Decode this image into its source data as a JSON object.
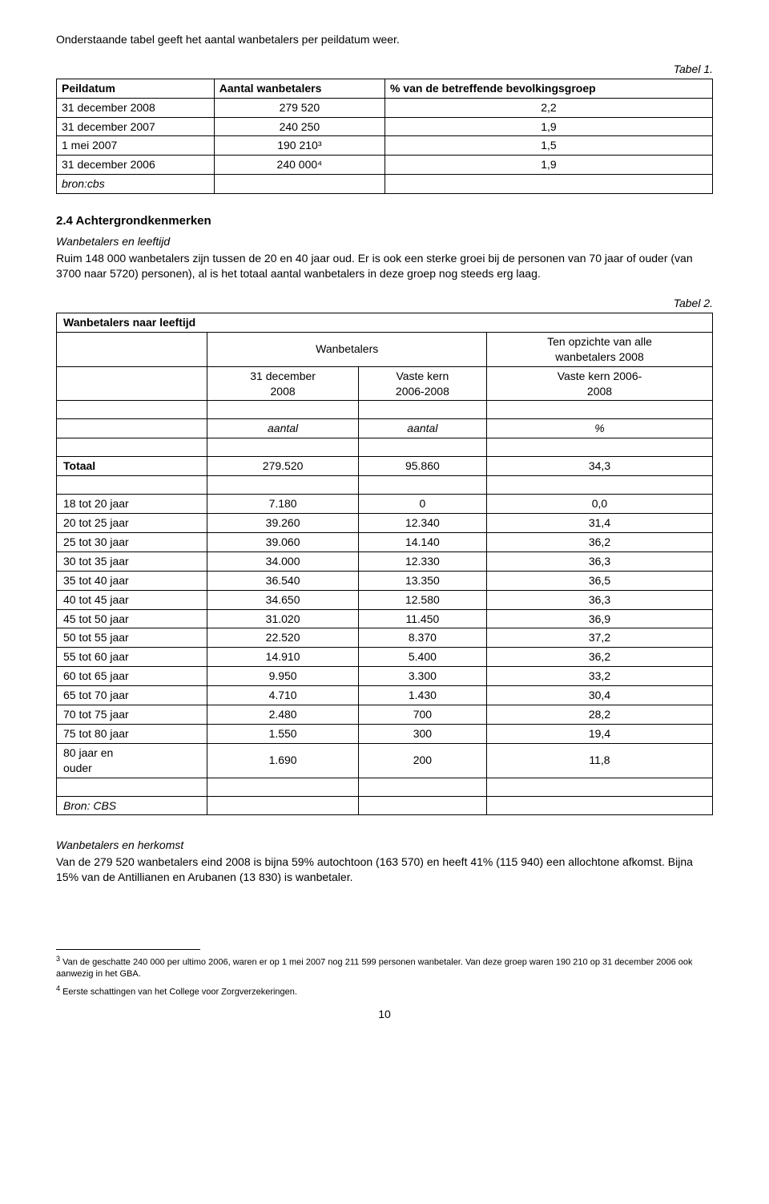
{
  "intro": "Onderstaande tabel geeft het aantal wanbetalers per peildatum weer.",
  "table1": {
    "label": "Tabel 1.",
    "headers": [
      "Peildatum",
      "Aantal wanbetalers",
      "% van de betreffende bevolkingsgroep"
    ],
    "rows": [
      {
        "c0": "31 december 2008",
        "c1": "279 520",
        "c2": "2,2"
      },
      {
        "c0": "31 december 2007",
        "c1": "240 250",
        "c2": "1,9"
      },
      {
        "c0": "1 mei 2007",
        "c1": "190 210³",
        "c2": "1,5"
      },
      {
        "c0": "31 december 2006",
        "c1": "240 000⁴",
        "c2": "1,9"
      }
    ],
    "source": "bron:cbs"
  },
  "section24": {
    "heading": "2.4 Achtergrondkenmerken",
    "sub1_title": "Wanbetalers en leeftijd",
    "sub1_text": "Ruim 148 000 wanbetalers zijn tussen de 20 en 40 jaar oud. Er is ook een sterke groei bij de personen van 70 jaar of ouder (van 3700 naar 5720) personen), al is het totaal aantal wanbetalers in deze groep nog steeds erg laag."
  },
  "table2": {
    "label": "Tabel 2.",
    "title": "Wanbetalers naar leeftijd",
    "group_left": "Wanbetalers",
    "group_right_l1": "Ten opzichte van alle",
    "group_right_l2": "wanbetalers 2008",
    "col1_l1": "31 december",
    "col1_l2": "2008",
    "col2_l1": "Vaste kern",
    "col2_l2": "2006-2008",
    "col3_l1": "Vaste kern 2006-",
    "col3_l2": "2008",
    "units": {
      "c1": "aantal",
      "c2": "aantal",
      "c3": "%"
    },
    "total": {
      "label": "Totaal",
      "c1": "279.520",
      "c2": "95.860",
      "c3": "34,3"
    },
    "rows": [
      {
        "label": "18 tot 20 jaar",
        "c1": "7.180",
        "c2": "0",
        "c3": "0,0"
      },
      {
        "label": "20 tot 25 jaar",
        "c1": "39.260",
        "c2": "12.340",
        "c3": "31,4"
      },
      {
        "label": "25 tot 30 jaar",
        "c1": "39.060",
        "c2": "14.140",
        "c3": "36,2"
      },
      {
        "label": "30 tot 35 jaar",
        "c1": "34.000",
        "c2": "12.330",
        "c3": "36,3"
      },
      {
        "label": "35 tot 40 jaar",
        "c1": "36.540",
        "c2": "13.350",
        "c3": "36,5"
      },
      {
        "label": "40 tot 45 jaar",
        "c1": "34.650",
        "c2": "12.580",
        "c3": "36,3"
      },
      {
        "label": "45 tot 50 jaar",
        "c1": "31.020",
        "c2": "11.450",
        "c3": "36,9"
      },
      {
        "label": "50 tot 55 jaar",
        "c1": "22.520",
        "c2": "8.370",
        "c3": "37,2"
      },
      {
        "label": "55 tot 60 jaar",
        "c1": "14.910",
        "c2": "5.400",
        "c3": "36,2"
      },
      {
        "label": "60 tot 65 jaar",
        "c1": "9.950",
        "c2": "3.300",
        "c3": "33,2"
      },
      {
        "label": "65 tot 70 jaar",
        "c1": "4.710",
        "c2": "1.430",
        "c3": "30,4"
      },
      {
        "label": "70 tot 75 jaar",
        "c1": "2.480",
        "c2": "700",
        "c3": "28,2"
      },
      {
        "label": "75 tot 80 jaar",
        "c1": "1.550",
        "c2": "300",
        "c3": "19,4"
      }
    ],
    "last_row": {
      "label_l1": "80 jaar en",
      "label_l2": "ouder",
      "c1": "1.690",
      "c2": "200",
      "c3": "11,8"
    },
    "source": "Bron: CBS"
  },
  "herkomst": {
    "title": "Wanbetalers en herkomst",
    "text": "Van de 279 520 wanbetalers eind 2008 is bijna 59% autochtoon (163 570) en heeft 41% (115 940) een allochtone afkomst. Bijna 15% van de Antillianen en Arubanen (13 830) is wanbetaler."
  },
  "footnotes": {
    "fn3": "Van de geschatte 240 000 per ultimo 2006, waren er op 1 mei 2007 nog 211 599 personen wanbetaler. Van deze groep waren 190 210 op 31 december 2006 ook aanwezig in het GBA.",
    "fn4": "Eerste schattingen van het College voor Zorgverzekeringen."
  },
  "pagenum": "10"
}
